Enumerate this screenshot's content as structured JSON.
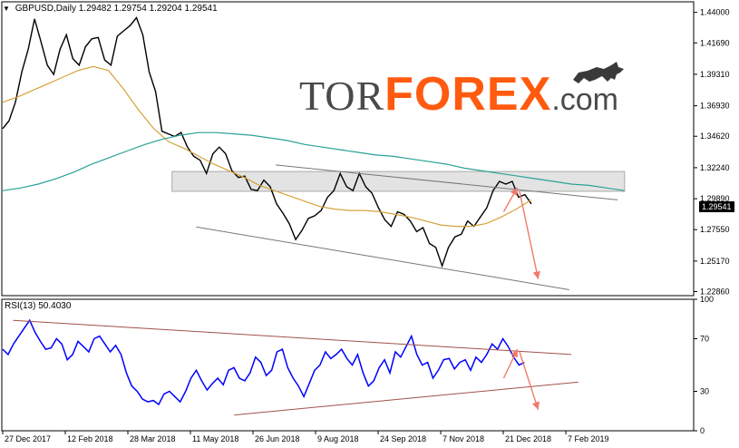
{
  "header": {
    "symbol": "GBPUSD,Daily",
    "ohlc": "1.29482 1.29754 1.29204 1.29541"
  },
  "logo": {
    "tor": "TOR",
    "forex": "FOREX",
    "com": ".com",
    "icon": "bull-icon"
  },
  "rsi_label": "RSI(13) 50.4030",
  "current_price": "1.29541",
  "colors": {
    "ema_fast": "#d6a23a",
    "ema_slow": "#2aa198",
    "rsi_line": "#0000ff",
    "rsi_trend": "#a0524a",
    "arrows": "#f07a6a",
    "zone": "#d9d9d9"
  },
  "chart_data": [
    {
      "type": "line",
      "title": "GBPUSD,Daily",
      "ylim": [
        1.2255,
        1.448
      ],
      "yticks": [
        "1.44000",
        "1.41690",
        "1.39310",
        "1.36930",
        "1.34620",
        "1.32240",
        "1.29890",
        "1.27550",
        "1.25170",
        "1.22860"
      ],
      "xticks": [
        "27 Dec 2017",
        "12 Feb 2018",
        "28 Mar 2018",
        "11 May 2018",
        "26 Jun 2018",
        "9 Aug 2018",
        "24 Sep 2018",
        "7 Nov 2018",
        "21 Dec 2018",
        "7 Feb 2019"
      ],
      "series": [
        {
          "values": [
            1.352,
            1.358,
            1.372,
            1.395,
            1.412,
            1.435,
            1.418,
            1.4,
            1.393,
            1.412,
            1.423,
            1.405,
            1.4,
            1.414,
            1.42,
            1.421,
            1.404,
            1.4,
            1.422,
            1.426,
            1.43,
            1.436,
            1.423,
            1.395,
            1.38,
            1.35,
            1.348,
            1.346,
            1.349,
            1.338,
            1.331,
            1.328,
            1.318,
            1.333,
            1.338,
            1.333,
            1.32,
            1.315,
            1.316,
            1.306,
            1.305,
            1.313,
            1.308,
            1.295,
            1.288,
            1.28,
            1.268,
            1.275,
            1.284,
            1.286,
            1.29,
            1.3,
            1.305,
            1.318,
            1.308,
            1.305,
            1.318,
            1.308,
            1.303,
            1.292,
            1.283,
            1.278,
            1.289,
            1.287,
            1.282,
            1.274,
            1.277,
            1.265,
            1.262,
            1.248,
            1.262,
            1.27,
            1.272,
            1.282,
            1.278,
            1.285,
            1.292,
            1.305,
            1.312,
            1.31,
            1.312,
            1.3,
            1.302,
            1.295
          ]
        },
        {
          "values": [
            1.372,
            1.376,
            1.381,
            1.386,
            1.391,
            1.396,
            1.399,
            1.396,
            1.382,
            1.366,
            1.352,
            1.342,
            1.337,
            1.331,
            1.325,
            1.32,
            1.315,
            1.309,
            1.305,
            1.301,
            1.297,
            1.293,
            1.291,
            1.29,
            1.29,
            1.289,
            1.287,
            1.285,
            1.282,
            1.279,
            1.278,
            1.278,
            1.28,
            1.285,
            1.291,
            1.298
          ]
        },
        {
          "values": [
            1.305,
            1.307,
            1.31,
            1.314,
            1.319,
            1.325,
            1.33,
            1.335,
            1.34,
            1.344,
            1.347,
            1.349,
            1.349,
            1.348,
            1.347,
            1.345,
            1.343,
            1.34,
            1.338,
            1.336,
            1.334,
            1.332,
            1.331,
            1.329,
            1.327,
            1.325,
            1.322,
            1.32,
            1.318,
            1.316,
            1.314,
            1.312,
            1.31,
            1.309,
            1.307,
            1.305
          ]
        }
      ],
      "annotations": {
        "resistance_zone": [
          1.3045,
          1.3195
        ],
        "upper_channel": [
          [
            0.395,
            1.3245
          ],
          [
            0.89,
            1.298
          ]
        ],
        "lower_channel": [
          [
            0.28,
            1.2775
          ],
          [
            0.82,
            1.23
          ]
        ],
        "arrows": [
          [
            [
              0.725,
              1.289
            ],
            [
              0.745,
              1.3075
            ]
          ],
          [
            [
              0.748,
              1.3045
            ],
            [
              0.775,
              1.238
            ]
          ]
        ]
      }
    },
    {
      "type": "line",
      "title": "RSI(13) 50.4030",
      "ylim": [
        0,
        100
      ],
      "yticks": [
        100,
        70,
        30,
        0
      ],
      "series": [
        {
          "values": [
            62,
            58,
            66,
            72,
            78,
            84,
            75,
            68,
            62,
            63,
            70,
            66,
            54,
            58,
            68,
            64,
            60,
            70,
            72,
            66,
            60,
            65,
            58,
            44,
            34,
            30,
            24,
            22,
            23,
            20,
            28,
            30,
            26,
            22,
            30,
            40,
            46,
            38,
            31,
            36,
            40,
            35,
            46,
            48,
            40,
            38,
            44,
            56,
            52,
            42,
            46,
            60,
            62,
            48,
            40,
            34,
            26,
            36,
            46,
            50,
            60,
            55,
            58,
            62,
            55,
            50,
            58,
            44,
            34,
            38,
            48,
            54,
            44,
            60,
            56,
            64,
            72,
            58,
            50,
            52,
            40,
            46,
            54,
            55,
            47,
            52,
            54,
            46,
            56,
            52,
            58,
            66,
            62,
            70,
            64,
            56,
            50,
            52
          ]
        }
      ],
      "annotations": {
        "upper_trend": [
          [
            0.015,
            84.0
          ],
          [
            0.823,
            58.0
          ]
        ],
        "lower_trend": [
          [
            0.335,
            12.0
          ],
          [
            0.833,
            37.0
          ]
        ],
        "arrows": [
          [
            [
              0.725,
              40.0
            ],
            [
              0.745,
              62.0
            ]
          ],
          [
            [
              0.748,
              60.0
            ],
            [
              0.775,
              16.0
            ]
          ]
        ]
      }
    }
  ]
}
